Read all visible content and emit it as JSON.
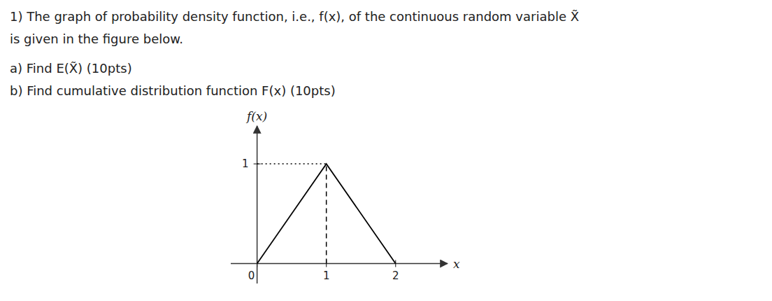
{
  "chart_data": {
    "type": "line",
    "annotations": [
      "1) The graph of probability density function, i.e., f(x), of the continuous random variable X̃",
      "is given  in the figure below.",
      "a) Find E(X̃)      (10pts)",
      "b) Find cumulative distribution function F(x)   (10pts)"
    ],
    "x_label": "x",
    "y_label": "f(x)",
    "series": [
      {
        "x": [
          0,
          1,
          2
        ],
        "values": [
          0,
          1,
          0
        ],
        "color": "#000000",
        "line_style": "solid"
      },
      {
        "x": [
          0,
          1
        ],
        "values": [
          1,
          1
        ],
        "color": "#000000",
        "line_style": "dotted"
      },
      {
        "x": [
          1,
          1
        ],
        "values": [
          0,
          1
        ],
        "color": "#000000",
        "line_style": "dashed"
      }
    ],
    "xlim": [
      -0.38,
      2.75
    ],
    "ylim": [
      -0.2,
      1.38
    ],
    "xticks": [
      0,
      1,
      2
    ],
    "yticks": [
      1
    ],
    "grid": false
  }
}
